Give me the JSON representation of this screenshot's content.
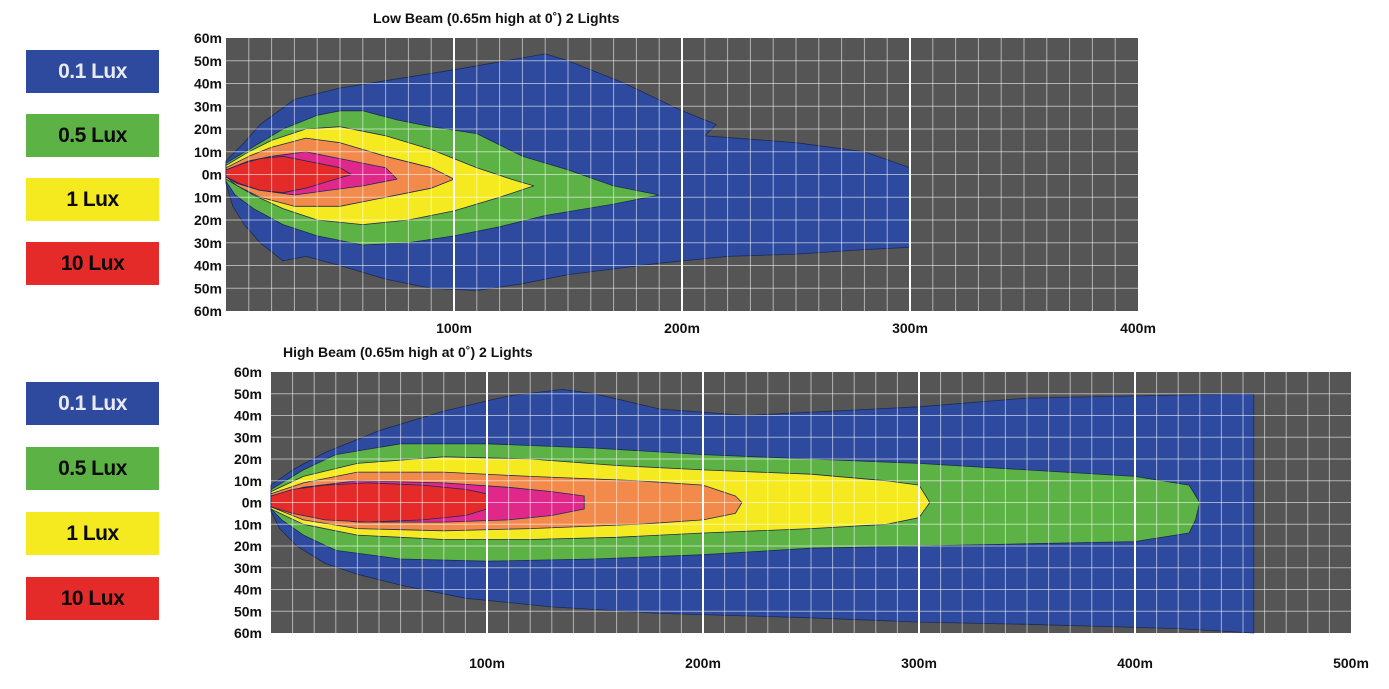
{
  "chart_data": [
    {
      "type": "heatmap",
      "subtype": "isolux-contour",
      "title": "Low Beam (0.65m high at 0˚) 2 Lights",
      "x_ticks": [
        "100m",
        "200m",
        "300m",
        "400m"
      ],
      "x_tick_values": [
        100,
        200,
        300,
        400
      ],
      "y_ticks": [
        "60m",
        "50m",
        "40m",
        "30m",
        "20m",
        "10m",
        "0m",
        "10m",
        "20m",
        "30m",
        "40m",
        "50m",
        "60m"
      ],
      "xlim": [
        0,
        400
      ],
      "ylim": [
        -60,
        60
      ],
      "grid": true,
      "legend": [
        {
          "label": "0.1 Lux",
          "color": "#2d4a9e",
          "text_color": "#e8eaf0"
        },
        {
          "label": "0.5 Lux",
          "color": "#5db246",
          "text_color": "#0b0b0b"
        },
        {
          "label": "1 Lux",
          "color": "#f5ea1f",
          "text_color": "#0b0b0b"
        },
        {
          "label": "10 Lux",
          "color": "#e52a2a",
          "text_color": "#0b0b0b"
        }
      ],
      "contours": [
        {
          "level": "0.1 Lux",
          "color": "#2d4a9e",
          "points": [
            [
              0,
              6
            ],
            [
              8,
              14
            ],
            [
              15,
              22
            ],
            [
              30,
              33
            ],
            [
              50,
              38
            ],
            [
              100,
              46
            ],
            [
              140,
              53
            ],
            [
              150,
              50
            ],
            [
              175,
              40
            ],
            [
              200,
              28
            ],
            [
              215,
              22
            ],
            [
              210,
              17
            ],
            [
              250,
              14
            ],
            [
              280,
              10
            ],
            [
              300,
              3
            ],
            [
              300,
              -32
            ],
            [
              280,
              -33
            ],
            [
              250,
              -35
            ],
            [
              220,
              -36
            ],
            [
              190,
              -39
            ],
            [
              150,
              -44
            ],
            [
              130,
              -48
            ],
            [
              110,
              -51
            ],
            [
              90,
              -50
            ],
            [
              70,
              -46
            ],
            [
              50,
              -40
            ],
            [
              35,
              -36
            ],
            [
              25,
              -38
            ],
            [
              15,
              -30
            ],
            [
              8,
              -22
            ],
            [
              3,
              -14
            ],
            [
              0,
              -4
            ]
          ]
        },
        {
          "level": "0.5 Lux",
          "color": "#5db246",
          "points": [
            [
              0,
              5
            ],
            [
              10,
              11
            ],
            [
              25,
              20
            ],
            [
              40,
              26
            ],
            [
              50,
              28
            ],
            [
              60,
              28
            ],
            [
              75,
              24
            ],
            [
              90,
              21
            ],
            [
              110,
              18
            ],
            [
              120,
              13
            ],
            [
              130,
              8
            ],
            [
              150,
              2
            ],
            [
              170,
              -5
            ],
            [
              190,
              -9
            ],
            [
              170,
              -13
            ],
            [
              140,
              -18
            ],
            [
              120,
              -23
            ],
            [
              100,
              -27
            ],
            [
              80,
              -30
            ],
            [
              60,
              -31
            ],
            [
              40,
              -27
            ],
            [
              25,
              -22
            ],
            [
              12,
              -15
            ],
            [
              4,
              -9
            ],
            [
              0,
              -3
            ]
          ]
        },
        {
          "level": "1 Lux",
          "color": "#f5ea1f",
          "points": [
            [
              0,
              4
            ],
            [
              10,
              10
            ],
            [
              20,
              15
            ],
            [
              35,
              20
            ],
            [
              50,
              21
            ],
            [
              70,
              17
            ],
            [
              90,
              11
            ],
            [
              110,
              3
            ],
            [
              125,
              -2
            ],
            [
              135,
              -5
            ],
            [
              120,
              -10
            ],
            [
              100,
              -16
            ],
            [
              80,
              -20
            ],
            [
              60,
              -22
            ],
            [
              40,
              -20
            ],
            [
              25,
              -15
            ],
            [
              12,
              -9
            ],
            [
              0,
              -2
            ]
          ]
        },
        {
          "level": "orange",
          "color": "#f28a4b",
          "points": [
            [
              0,
              3
            ],
            [
              10,
              8
            ],
            [
              20,
              12
            ],
            [
              35,
              16
            ],
            [
              50,
              14
            ],
            [
              70,
              8
            ],
            [
              90,
              3
            ],
            [
              100,
              -2
            ],
            [
              90,
              -6
            ],
            [
              70,
              -10
            ],
            [
              50,
              -14
            ],
            [
              30,
              -14
            ],
            [
              15,
              -10
            ],
            [
              5,
              -5
            ],
            [
              0,
              -1
            ]
          ]
        },
        {
          "level": "pink",
          "color": "#e0288a",
          "points": [
            [
              0,
              2
            ],
            [
              10,
              6
            ],
            [
              20,
              8
            ],
            [
              35,
              10
            ],
            [
              50,
              7
            ],
            [
              70,
              3
            ],
            [
              75,
              -2
            ],
            [
              60,
              -5
            ],
            [
              45,
              -7
            ],
            [
              30,
              -9
            ],
            [
              15,
              -7
            ],
            [
              5,
              -4
            ],
            [
              0,
              -1
            ]
          ]
        },
        {
          "level": "10 Lux",
          "color": "#e52a2a",
          "points": [
            [
              0,
              2
            ],
            [
              8,
              5
            ],
            [
              15,
              7
            ],
            [
              25,
              8
            ],
            [
              35,
              6
            ],
            [
              50,
              3
            ],
            [
              55,
              0
            ],
            [
              45,
              -3
            ],
            [
              35,
              -6
            ],
            [
              25,
              -8
            ],
            [
              15,
              -7
            ],
            [
              6,
              -4
            ],
            [
              0,
              -1
            ]
          ]
        }
      ]
    },
    {
      "type": "heatmap",
      "subtype": "isolux-contour",
      "title": "High Beam (0.65m high at 0˚) 2 Lights",
      "x_ticks": [
        "100m",
        "200m",
        "300m",
        "400m",
        "500m"
      ],
      "x_tick_values": [
        100,
        200,
        300,
        400,
        500
      ],
      "y_ticks": [
        "60m",
        "50m",
        "40m",
        "30m",
        "20m",
        "10m",
        "0m",
        "10m",
        "20m",
        "30m",
        "40m",
        "50m",
        "60m"
      ],
      "xlim": [
        0,
        500
      ],
      "ylim": [
        -60,
        60
      ],
      "grid": true,
      "legend": [
        {
          "label": "0.1 Lux",
          "color": "#2d4a9e",
          "text_color": "#e8eaf0"
        },
        {
          "label": "0.5 Lux",
          "color": "#5db246",
          "text_color": "#0b0b0b"
        },
        {
          "label": "1 Lux",
          "color": "#f5ea1f",
          "text_color": "#0b0b0b"
        },
        {
          "label": "10 Lux",
          "color": "#e52a2a",
          "text_color": "#0b0b0b"
        }
      ],
      "contours": [
        {
          "level": "0.1 Lux",
          "color": "#2d4a9e",
          "points": [
            [
              0,
              8
            ],
            [
              10,
              15
            ],
            [
              25,
              23
            ],
            [
              50,
              33
            ],
            [
              80,
              42
            ],
            [
              110,
              49
            ],
            [
              135,
              52
            ],
            [
              150,
              50
            ],
            [
              180,
              43
            ],
            [
              220,
              40
            ],
            [
              300,
              44
            ],
            [
              350,
              48
            ],
            [
              400,
              49
            ],
            [
              450,
              50
            ],
            [
              455,
              50
            ],
            [
              455,
              -60
            ],
            [
              420,
              -58
            ],
            [
              350,
              -56
            ],
            [
              300,
              -55
            ],
            [
              250,
              -53
            ],
            [
              180,
              -51
            ],
            [
              130,
              -48
            ],
            [
              90,
              -44
            ],
            [
              60,
              -38
            ],
            [
              40,
              -33
            ],
            [
              25,
              -28
            ],
            [
              12,
              -20
            ],
            [
              4,
              -12
            ],
            [
              0,
              -4
            ]
          ]
        },
        {
          "level": "0.5 Lux",
          "color": "#5db246",
          "points": [
            [
              0,
              6
            ],
            [
              15,
              15
            ],
            [
              30,
              22
            ],
            [
              60,
              27
            ],
            [
              100,
              27
            ],
            [
              150,
              25
            ],
            [
              200,
              22
            ],
            [
              250,
              20
            ],
            [
              300,
              18
            ],
            [
              350,
              15
            ],
            [
              400,
              12
            ],
            [
              425,
              8
            ],
            [
              430,
              0
            ],
            [
              428,
              -8
            ],
            [
              425,
              -14
            ],
            [
              400,
              -18
            ],
            [
              350,
              -19
            ],
            [
              300,
              -20
            ],
            [
              250,
              -21
            ],
            [
              200,
              -24
            ],
            [
              150,
              -26
            ],
            [
              100,
              -27
            ],
            [
              60,
              -26
            ],
            [
              30,
              -22
            ],
            [
              15,
              -15
            ],
            [
              5,
              -8
            ],
            [
              0,
              -3
            ]
          ]
        },
        {
          "level": "1 Lux",
          "color": "#f5ea1f",
          "points": [
            [
              0,
              5
            ],
            [
              15,
              12
            ],
            [
              40,
              18
            ],
            [
              80,
              21
            ],
            [
              120,
              20
            ],
            [
              160,
              17
            ],
            [
              200,
              15
            ],
            [
              250,
              13
            ],
            [
              285,
              10
            ],
            [
              300,
              8
            ],
            [
              305,
              0
            ],
            [
              300,
              -7
            ],
            [
              285,
              -10
            ],
            [
              250,
              -12
            ],
            [
              200,
              -14
            ],
            [
              160,
              -16
            ],
            [
              120,
              -17
            ],
            [
              80,
              -17
            ],
            [
              40,
              -15
            ],
            [
              15,
              -10
            ],
            [
              0,
              -3
            ]
          ]
        },
        {
          "level": "orange",
          "color": "#f28a4b",
          "points": [
            [
              0,
              4
            ],
            [
              15,
              9
            ],
            [
              40,
              14
            ],
            [
              80,
              14
            ],
            [
              120,
              12
            ],
            [
              170,
              10
            ],
            [
              200,
              8
            ],
            [
              215,
              3
            ],
            [
              218,
              0
            ],
            [
              215,
              -5
            ],
            [
              200,
              -8
            ],
            [
              170,
              -10
            ],
            [
              120,
              -12
            ],
            [
              80,
              -13
            ],
            [
              40,
              -12
            ],
            [
              15,
              -8
            ],
            [
              0,
              -2
            ]
          ]
        },
        {
          "level": "pink",
          "color": "#e0288a",
          "points": [
            [
              0,
              3
            ],
            [
              15,
              7
            ],
            [
              40,
              10
            ],
            [
              80,
              9
            ],
            [
              110,
              7
            ],
            [
              130,
              5
            ],
            [
              145,
              3
            ],
            [
              145,
              -3
            ],
            [
              130,
              -6
            ],
            [
              110,
              -8
            ],
            [
              80,
              -9
            ],
            [
              40,
              -9
            ],
            [
              15,
              -6
            ],
            [
              0,
              -2
            ]
          ]
        },
        {
          "level": "10 Lux",
          "color": "#e52a2a",
          "points": [
            [
              0,
              3
            ],
            [
              10,
              6
            ],
            [
              25,
              8
            ],
            [
              45,
              9
            ],
            [
              70,
              8
            ],
            [
              90,
              6
            ],
            [
              100,
              4
            ],
            [
              100,
              -3
            ],
            [
              90,
              -6
            ],
            [
              70,
              -8
            ],
            [
              45,
              -9
            ],
            [
              25,
              -8
            ],
            [
              10,
              -5
            ],
            [
              0,
              -2
            ]
          ]
        }
      ]
    }
  ]
}
